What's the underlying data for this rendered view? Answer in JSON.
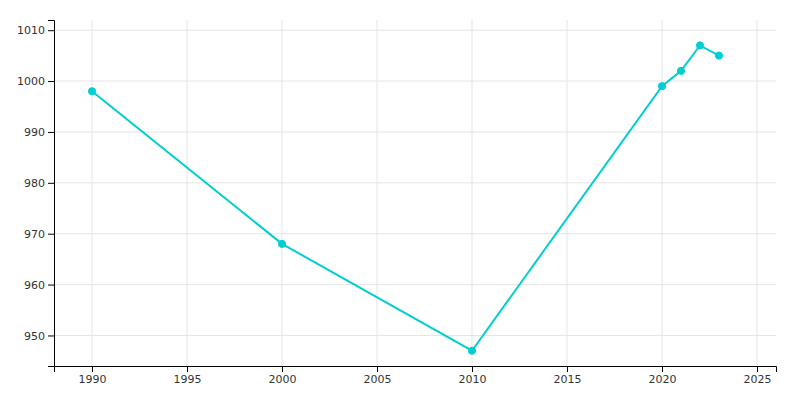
{
  "chart_data": {
    "type": "line",
    "x": [
      1990,
      2000,
      2010,
      2020,
      2021,
      2022,
      2023
    ],
    "values": [
      998,
      968,
      947,
      999,
      1002,
      1007,
      1005
    ],
    "color": "#00CED1",
    "marker": "circle",
    "xlim": [
      1988,
      2026
    ],
    "ylim": [
      944,
      1012
    ],
    "xticks": [
      1990,
      1995,
      2000,
      2005,
      2010,
      2015,
      2020,
      2025
    ],
    "yticks": [
      950,
      960,
      970,
      980,
      990,
      1000,
      1010
    ],
    "grid": true
  }
}
